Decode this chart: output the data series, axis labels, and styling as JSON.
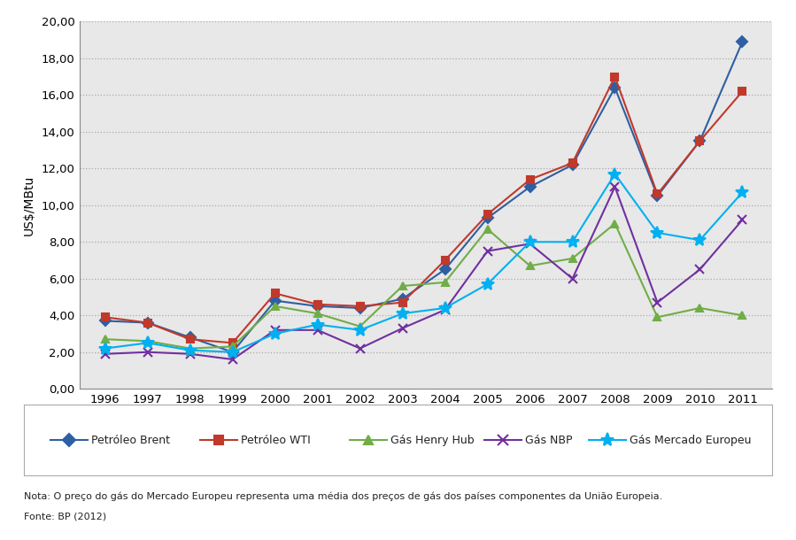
{
  "years": [
    1996,
    1997,
    1998,
    1999,
    2000,
    2001,
    2002,
    2003,
    2004,
    2005,
    2006,
    2007,
    2008,
    2009,
    2010,
    2011
  ],
  "petroleo_brent": [
    3.7,
    3.6,
    2.8,
    2.0,
    4.8,
    4.5,
    4.4,
    4.9,
    6.5,
    9.3,
    11.0,
    12.2,
    16.4,
    10.5,
    13.5,
    18.9
  ],
  "petroleo_wti": [
    3.9,
    3.6,
    2.7,
    2.5,
    5.2,
    4.6,
    4.5,
    4.7,
    7.0,
    9.5,
    11.4,
    12.3,
    17.0,
    10.6,
    13.5,
    16.2
  ],
  "gas_henry_hub": [
    2.7,
    2.6,
    2.2,
    2.3,
    4.5,
    4.1,
    3.4,
    5.6,
    5.8,
    8.7,
    6.7,
    7.1,
    9.0,
    3.9,
    4.4,
    4.0
  ],
  "gas_nbp": [
    1.9,
    2.0,
    1.9,
    1.6,
    3.2,
    3.2,
    2.2,
    3.3,
    4.3,
    7.5,
    7.9,
    6.0,
    11.0,
    4.7,
    6.5,
    9.2
  ],
  "gas_mercado_europeu": [
    2.2,
    2.5,
    2.1,
    2.0,
    3.0,
    3.5,
    3.2,
    4.1,
    4.4,
    5.7,
    8.0,
    8.0,
    11.7,
    8.5,
    8.1,
    10.7
  ],
  "series_labels": [
    "Petróleo Brent",
    "Petróleo WTI",
    "Gás Henry Hub",
    "Gás NBP",
    "Gás Mercado Europeu"
  ],
  "series_colors": [
    "#2e5fa3",
    "#c0392b",
    "#70ad47",
    "#7030a0",
    "#00b0f0"
  ],
  "series_markers": [
    "D",
    "s",
    "^",
    "x",
    "*"
  ],
  "ylabel": "US$/MBtu",
  "ylim": [
    0,
    20
  ],
  "ytick_values": [
    0.0,
    2.0,
    4.0,
    6.0,
    8.0,
    10.0,
    12.0,
    14.0,
    16.0,
    18.0,
    20.0
  ],
  "ytick_labels": [
    "0,00",
    "2,00",
    "4,00",
    "6,00",
    "8,00",
    "10,00",
    "12,00",
    "14,00",
    "16,00",
    "18,00",
    "20,00"
  ],
  "plot_bg_color": "#e8e8e8",
  "fig_bg_color": "#ffffff",
  "grid_color": "#aaaaaa",
  "border_color": "#888888",
  "note_line1": "Nota: O preço do gás do Mercado Europeu representa uma média dos preços de gás dos países componentes da União Europeia.",
  "note_line2": "Fonte: BP (2012)"
}
